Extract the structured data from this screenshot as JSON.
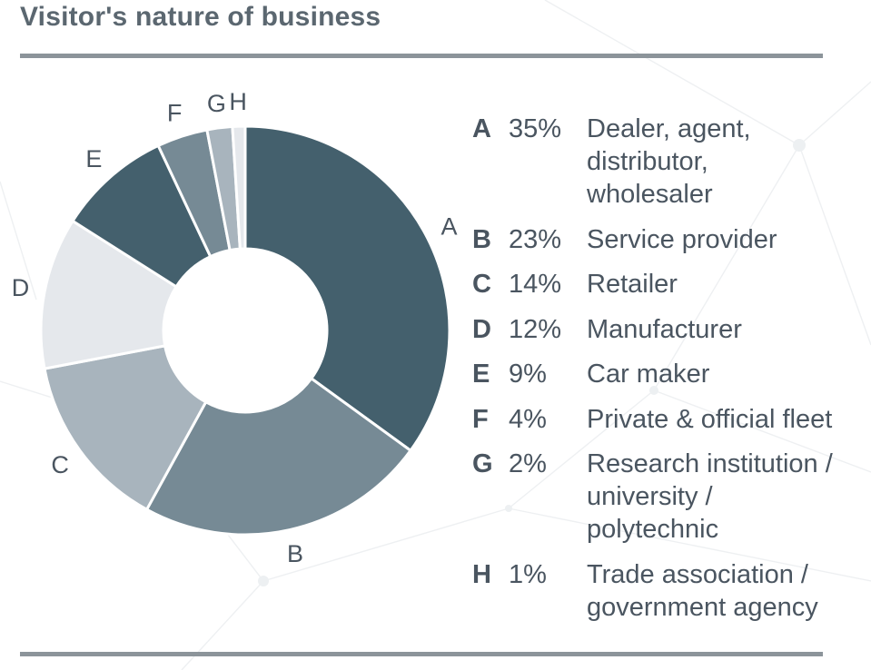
{
  "chart_data": {
    "type": "pie",
    "title": "Visitor's nature of business",
    "categories": [
      "A",
      "B",
      "C",
      "D",
      "E",
      "F",
      "G",
      "H"
    ],
    "values": [
      35,
      23,
      14,
      12,
      9,
      4,
      2,
      1
    ],
    "value_labels": [
      "35%",
      "23%",
      "14%",
      "12%",
      "9%",
      "4%",
      "2%",
      "1%"
    ],
    "descriptions": [
      "Dealer, agent, distributor, wholesaler",
      "Service provider",
      "Retailer",
      "Manufacturer",
      "Car maker",
      "Private & official fleet",
      "Research institution / university / polytechnic",
      "Trade association / government agency"
    ],
    "description_lines": [
      [
        "Dealer, agent,",
        "distributor,",
        "wholesaler"
      ],
      [
        "Service provider"
      ],
      [
        "Retailer"
      ],
      [
        "Manufacturer"
      ],
      [
        "Car maker"
      ],
      [
        "Private & official fleet"
      ],
      [
        "Research institution /",
        "university /",
        "polytechnic"
      ],
      [
        "Trade association /",
        "government agency"
      ]
    ],
    "colors": [
      "#44606d",
      "#768a95",
      "#a8b4bd",
      "#e5e8ec",
      "#44606d",
      "#768a95",
      "#a8b4bd",
      "#e5e8ec"
    ],
    "donut": true,
    "start_angle": "12 o'clock",
    "direction": "clockwise",
    "legend_position": "right"
  }
}
